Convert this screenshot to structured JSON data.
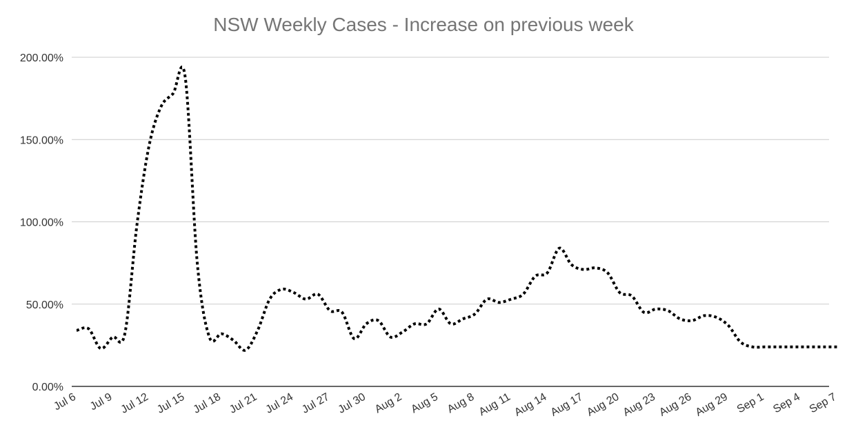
{
  "chart_data": {
    "type": "line",
    "title": "NSW Weekly Cases - Increase on previous week",
    "xlabel": "",
    "ylabel": "",
    "grid": true,
    "legend": "none",
    "line_style": "dotted",
    "line_color": "#000000",
    "y_ticks": [
      "0.00%",
      "50.00%",
      "100.00%",
      "150.00%",
      "200.00%"
    ],
    "ylim": [
      0,
      200
    ],
    "x_ticks": [
      "Jul 6",
      "Jul 9",
      "Jul 12",
      "Jul 15",
      "Jul 18",
      "Jul 21",
      "Jul 24",
      "Jul 27",
      "Jul 30",
      "Aug 2",
      "Aug 5",
      "Aug 8",
      "Aug 11",
      "Aug 14",
      "Aug 17",
      "Aug 20",
      "Aug 23",
      "Aug 26",
      "Aug 29",
      "Sep 1",
      "Sep 4",
      "Sep 7"
    ],
    "x": [
      "Jul 6",
      "Jul 7",
      "Jul 8",
      "Jul 9",
      "Jul 10",
      "Jul 11",
      "Jul 12",
      "Jul 13",
      "Jul 14",
      "Jul 15",
      "Jul 16",
      "Jul 17",
      "Jul 18",
      "Jul 19",
      "Jul 20",
      "Jul 21",
      "Jul 22",
      "Jul 23",
      "Jul 24",
      "Jul 25",
      "Jul 26",
      "Jul 27",
      "Jul 28",
      "Jul 29",
      "Jul 30",
      "Jul 31",
      "Aug 1",
      "Aug 2",
      "Aug 3",
      "Aug 4",
      "Aug 5",
      "Aug 6",
      "Aug 7",
      "Aug 8",
      "Aug 9",
      "Aug 10",
      "Aug 11",
      "Aug 12",
      "Aug 13",
      "Aug 14",
      "Aug 15",
      "Aug 16",
      "Aug 17",
      "Aug 18",
      "Aug 19",
      "Aug 20",
      "Aug 21",
      "Aug 22",
      "Aug 23",
      "Aug 24",
      "Aug 25",
      "Aug 26",
      "Aug 27",
      "Aug 28",
      "Aug 29",
      "Aug 30",
      "Aug 31",
      "Sep 1",
      "Sep 2",
      "Sep 3",
      "Sep 4",
      "Sep 5",
      "Sep 6",
      "Sep 7"
    ],
    "series": [
      {
        "values": [
          34,
          35,
          23,
          30,
          32,
          98,
          146,
          170,
          178,
          188,
          75,
          30,
          32,
          28,
          22,
          34,
          53,
          59,
          57,
          53,
          56,
          46,
          45,
          29,
          38,
          40,
          30,
          33,
          38,
          38,
          47,
          38,
          41,
          44,
          53,
          51,
          53,
          56,
          67,
          69,
          84,
          74,
          71,
          72,
          69,
          57,
          55,
          45,
          47,
          46,
          41,
          40,
          43,
          42,
          37,
          27,
          24,
          24,
          24,
          24,
          24,
          24,
          24,
          24
        ]
      }
    ]
  }
}
